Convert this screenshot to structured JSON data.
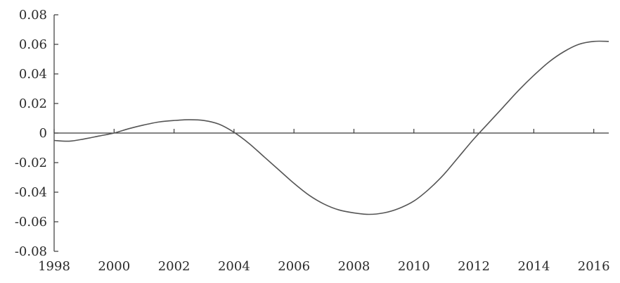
{
  "chart_data": {
    "type": "line",
    "title": "",
    "xlabel": "",
    "ylabel": "",
    "xlim": [
      1998,
      2016.5
    ],
    "ylim": [
      -0.08,
      0.08
    ],
    "grid": false,
    "x_ticks": [
      1998,
      2000,
      2002,
      2004,
      2006,
      2008,
      2010,
      2012,
      2014,
      2016
    ],
    "x_tick_labels": [
      "1998",
      "2000",
      "2002",
      "2004",
      "2006",
      "2008",
      "2010",
      "2012",
      "2014",
      "2016"
    ],
    "y_ticks": [
      0.08,
      0.06,
      0.04,
      0.02,
      0,
      -0.02,
      -0.04,
      -0.06,
      -0.08
    ],
    "y_tick_labels": [
      "0.08",
      "0.06",
      "0.04",
      "0.02",
      "0",
      "-0.02",
      "-0.04",
      "-0.06",
      "-0.08"
    ],
    "series": [
      {
        "color": "#555555",
        "x": [
          1998,
          1998.5,
          1999,
          1999.5,
          2000,
          2000.5,
          2001,
          2001.5,
          2002,
          2002.5,
          2003,
          2003.5,
          2004,
          2004.5,
          2005,
          2005.5,
          2006,
          2006.5,
          2007,
          2007.5,
          2008,
          2008.5,
          2009,
          2009.5,
          2010,
          2010.5,
          2011,
          2011.5,
          2012,
          2012.5,
          2013,
          2013.5,
          2014,
          2014.5,
          2015,
          2015.5,
          2016,
          2016.5
        ],
        "y": [
          -0.005,
          -0.0055,
          -0.004,
          -0.002,
          0.0,
          0.003,
          0.0055,
          0.0075,
          0.0085,
          0.009,
          0.0085,
          0.006,
          0.0005,
          -0.007,
          -0.016,
          -0.025,
          -0.034,
          -0.042,
          -0.048,
          -0.052,
          -0.054,
          -0.055,
          -0.054,
          -0.051,
          -0.046,
          -0.038,
          -0.028,
          -0.016,
          -0.004,
          0.007,
          0.018,
          0.029,
          0.039,
          0.048,
          0.055,
          0.06,
          0.062,
          0.062
        ]
      }
    ]
  }
}
